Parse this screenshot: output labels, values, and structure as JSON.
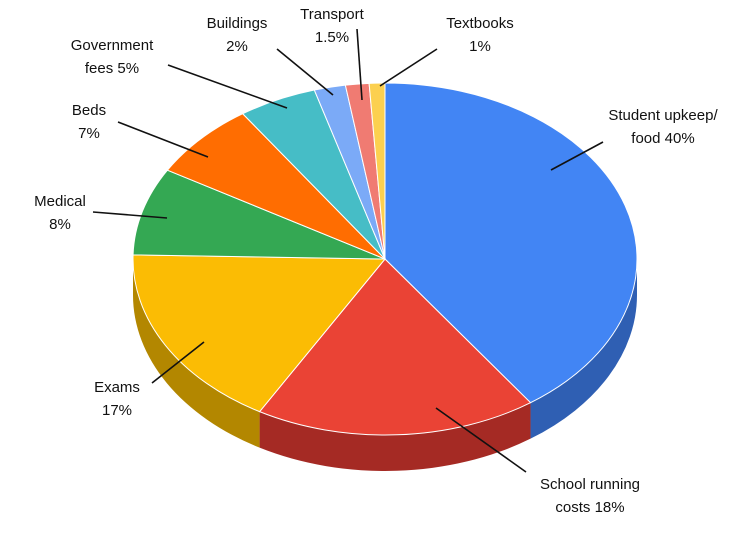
{
  "chart_data": {
    "type": "pie",
    "style": "3d",
    "title": "",
    "start": "12 o'clock",
    "direction": "clockwise",
    "legend": "none",
    "slices": [
      {
        "name": "Student upkeep/ food",
        "value": 40,
        "label_lines": [
          "Student upkeep/",
          "food 40%"
        ],
        "color": "#4285F4",
        "side_color": "#2F5FB3"
      },
      {
        "name": "School running costs",
        "value": 18,
        "label_lines": [
          "School running",
          "costs 18%"
        ],
        "color": "#EA4335",
        "side_color": "#A52A24"
      },
      {
        "name": "Exams",
        "value": 17,
        "label_lines": [
          "Exams",
          "17%"
        ],
        "color": "#FBBC04",
        "side_color": "#B38700"
      },
      {
        "name": "Medical",
        "value": 8,
        "label_lines": [
          "Medical",
          "8%"
        ],
        "color": "#34A853",
        "side_color": "#247A3B"
      },
      {
        "name": "Beds",
        "value": 7,
        "label_lines": [
          "Beds",
          "7%"
        ],
        "color": "#FF6D01",
        "side_color": "#B34C00"
      },
      {
        "name": "Government fees",
        "value": 5,
        "label_lines": [
          "Government",
          "fees 5%"
        ],
        "color": "#46BDC6",
        "side_color": "#2E878E"
      },
      {
        "name": "Buildings",
        "value": 2,
        "label_lines": [
          "Buildings",
          "2%"
        ],
        "color": "#7BAAF7",
        "side_color": "#5579B0"
      },
      {
        "name": "Transport",
        "value": 1.5,
        "label_lines": [
          "Transport",
          "1.5%"
        ],
        "color": "#F07B72",
        "side_color": "#A8544E"
      },
      {
        "name": "Textbooks",
        "value": 1,
        "label_lines": [
          "Textbooks",
          "1%"
        ],
        "color": "#FCD04F",
        "side_color": "#B0922F"
      }
    ]
  }
}
